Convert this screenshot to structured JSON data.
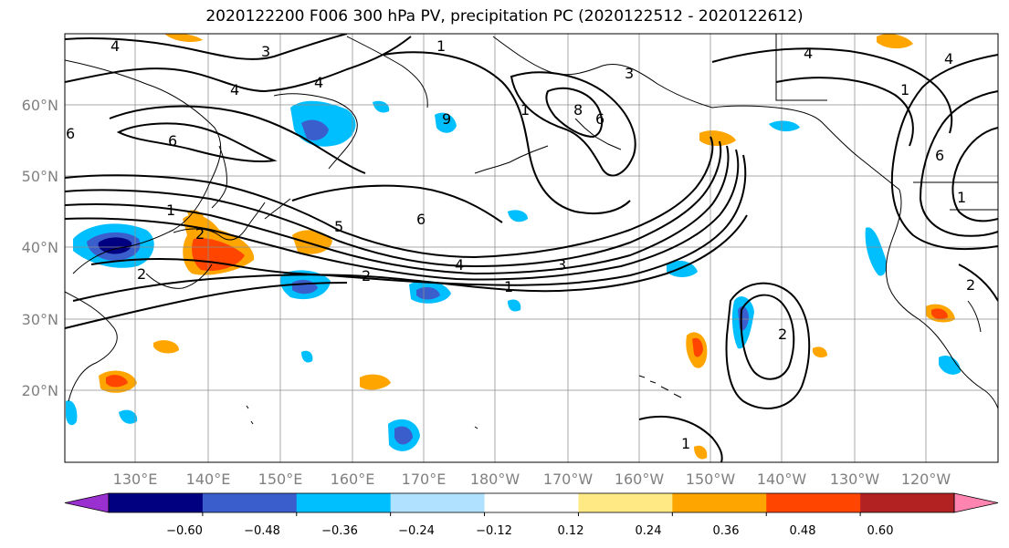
{
  "title": "2020122200 F006 300 hPa PV, precipitation PC (2020122512 - 2020122612)",
  "lat_labels": [
    "60°N",
    "50°N",
    "40°N",
    "30°N",
    "20°N"
  ],
  "lon_labels": [
    "130°E",
    "140°E",
    "150°E",
    "160°E",
    "170°E",
    "180°W",
    "170°W",
    "160°W",
    "150°W",
    "140°W",
    "130°W",
    "120°W"
  ],
  "colorbar": {
    "ticks": [
      "−0.60",
      "−0.48",
      "−0.36",
      "−0.24",
      "−0.12",
      "0.12",
      "0.24",
      "0.36",
      "0.48",
      "0.60"
    ],
    "colors": [
      "#9b30d0",
      "#000080",
      "#3a5fcd",
      "#00bfff",
      "#b0e2ff",
      "#ffffff",
      "#ffe985",
      "#ffa500",
      "#ff4500",
      "#b22222",
      "#ff85b0"
    ]
  },
  "pv_contour_labels": [
    "4",
    "3",
    "1",
    "4",
    "3",
    "1",
    "4",
    "4",
    "6",
    "2",
    "6",
    "5",
    "6",
    "9",
    "6",
    "8",
    "1",
    "2",
    "2",
    "4",
    "3",
    "1",
    "6",
    "1",
    "4",
    "2",
    "1",
    "2",
    "1"
  ]
}
